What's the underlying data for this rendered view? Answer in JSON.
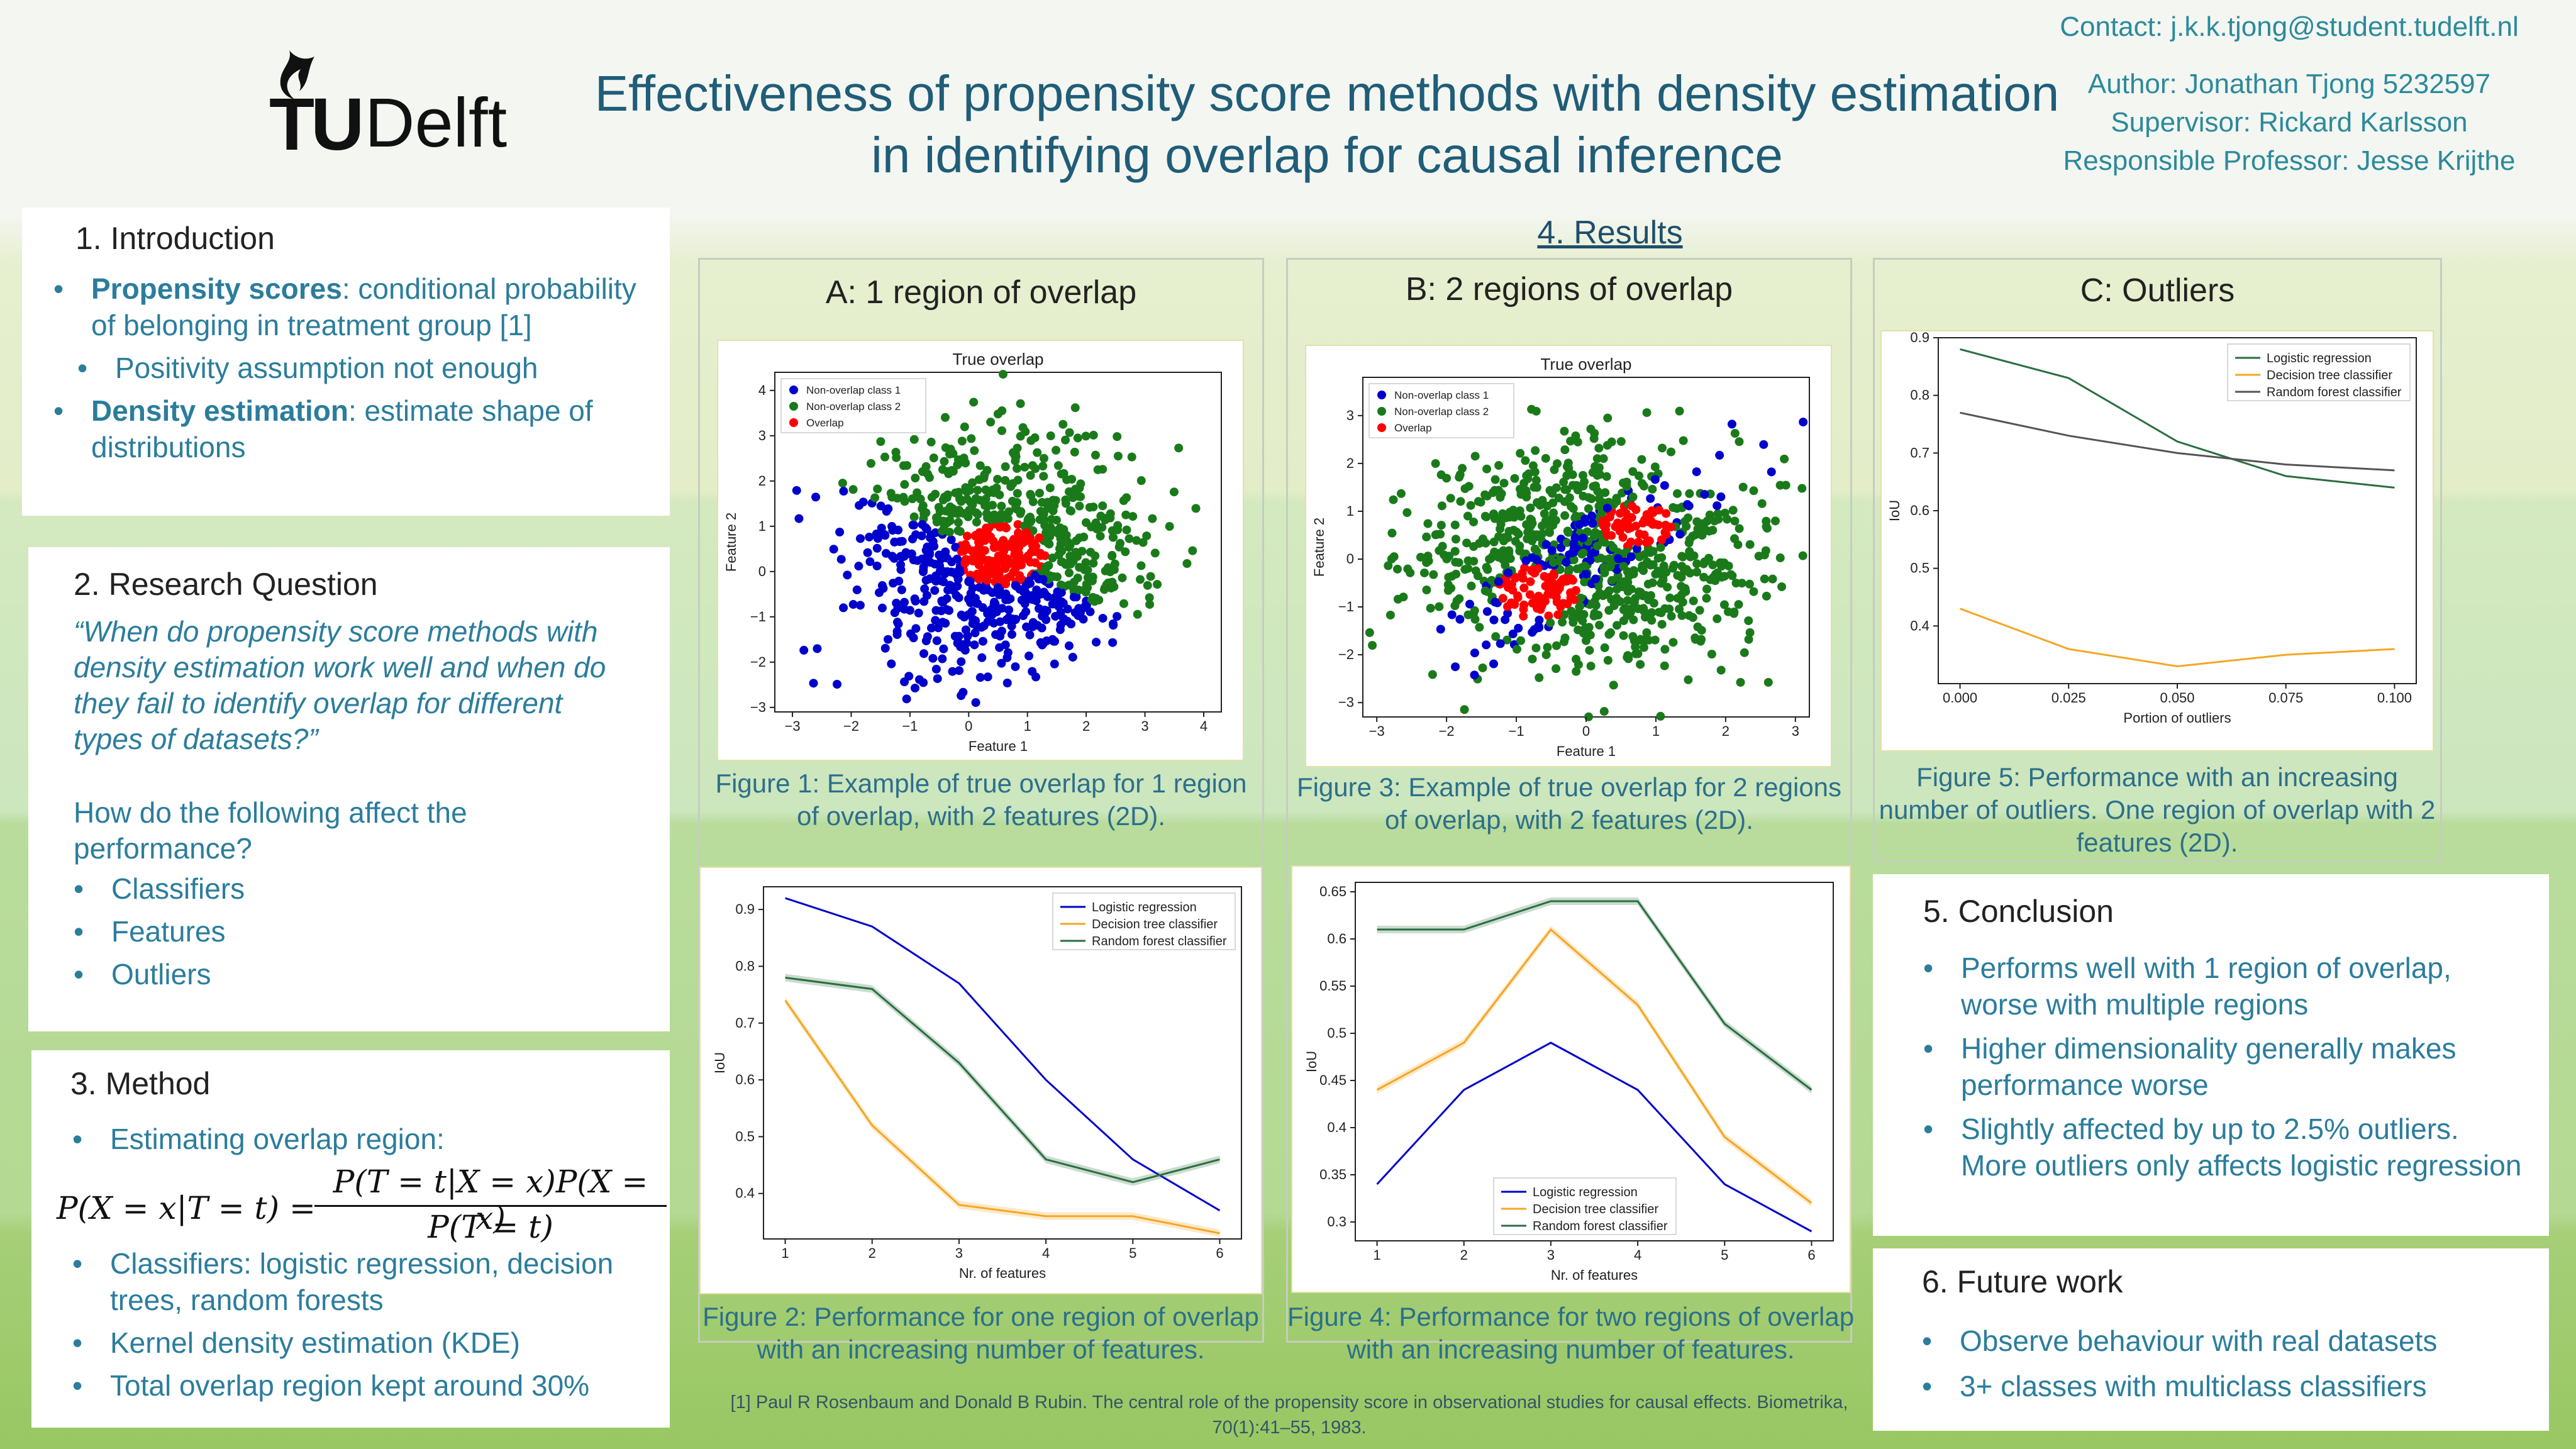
{
  "header": {
    "logo_tu": "TU",
    "logo_delft": "Delft",
    "title_line1": "Effectiveness of propensity score methods with density estimation",
    "title_line2": "in identifying overlap for causal inference",
    "contact": "Contact: j.k.k.tjong@student.tudelft.nl",
    "author": "Author: Jonathan Tjong 5232597",
    "supervisor": "Supervisor: Rickard Karlsson",
    "professor": "Responsible Professor: Jesse Krijthe"
  },
  "intro": {
    "heading": "1. Introduction",
    "b1_bold": "Propensity scores",
    "b1_rest": ": conditional probability of belonging in treatment group [1]",
    "b2": "Positivity assumption not enough",
    "b3_bold": "Density estimation",
    "b3_rest": ": estimate shape of distributions"
  },
  "rq": {
    "heading": "2. Research Question",
    "quote": "“When do propensity score methods with density estimation work well and when do they fail to identify overlap for different types of datasets?”",
    "question": "How do the following affect the performance?",
    "items": [
      "Classifiers",
      "Features",
      "Outliers"
    ]
  },
  "method": {
    "heading": "3. Method",
    "b1": "Estimating overlap region:",
    "b2": "Classifiers: logistic regression, decision trees, random forests",
    "b3": "Kernel density estimation (KDE)",
    "b4": "Total overlap region kept around 30%"
  },
  "formula": {
    "lhs": "P(X = x|T = t) =",
    "num": "P(T = t|X = x)P(X = x)",
    "den": "P(T = t)"
  },
  "results": {
    "heading": "4. Results",
    "colA": "A: 1 region of overlap",
    "colB": "B: 2 regions of overlap",
    "colC": "C: Outliers",
    "fig1": "Figure 1: Example of true overlap for 1 region of overlap, with 2 features (2D).",
    "fig2": "Figure 2: Performance for one region of overlap with an increasing number of features.",
    "fig3": "Figure 3: Example of true overlap for 2 regions of overlap, with 2 features (2D).",
    "fig4": "Figure 4: Performance for two regions of overlap with an increasing number of features.",
    "fig5": "Figure 5: Performance with an increasing number of outliers. One region of overlap with 2 features (2D)."
  },
  "conclusion": {
    "heading": "5. Conclusion",
    "items": [
      "Performs well with 1 region of overlap, worse with multiple regions",
      "Higher dimensionality generally makes performance worse",
      "Slightly affected by up to 2.5% outliers. More outliers only affects logistic regression"
    ]
  },
  "future": {
    "heading": "6. Future work",
    "items": [
      "Observe behaviour with real datasets",
      "3+ classes with multiclass classifiers"
    ]
  },
  "reference": "[1] Paul R Rosenbaum and Donald B Rubin. The central role of the propensity score in observational studies for causal effects. Biometrika, 70(1):41–55, 1983.",
  "colors": {
    "blue": "#0000cc",
    "green": "#1a7a1a",
    "red": "#ff0000",
    "orange": "#f5a623",
    "dark_green": "#2a6e3f",
    "grey": "#555555"
  },
  "chart_data": [
    {
      "id": "fig1",
      "type": "scatter",
      "title": "True overlap",
      "xlabel": "Feature 1",
      "ylabel": "Feature 2",
      "xlim": [
        -3.3,
        4.3
      ],
      "ylim": [
        -3.1,
        4.4
      ],
      "xticks": [
        -3,
        -2,
        -1,
        0,
        1,
        2,
        3,
        4
      ],
      "yticks": [
        -3,
        -2,
        -1,
        0,
        1,
        2,
        3,
        4
      ],
      "legend": [
        "Non-overlap class 1",
        "Non-overlap class 2",
        "Overlap"
      ],
      "legend_position": "top-left"
    },
    {
      "id": "fig3",
      "type": "scatter",
      "title": "True overlap",
      "xlabel": "Feature 1",
      "ylabel": "Feature 2",
      "xlim": [
        -3.2,
        3.2
      ],
      "ylim": [
        -3.3,
        3.8
      ],
      "xticks": [
        -3,
        -2,
        -1,
        0,
        1,
        2,
        3
      ],
      "yticks": [
        -3,
        -2,
        -1,
        0,
        1,
        2,
        3
      ],
      "legend": [
        "Non-overlap class 1",
        "Non-overlap class 2",
        "Overlap"
      ],
      "legend_position": "top-left"
    },
    {
      "id": "fig2",
      "type": "line",
      "xlabel": "Nr. of features",
      "ylabel": "IoU",
      "x": [
        1,
        2,
        3,
        4,
        5,
        6
      ],
      "xlim": [
        0.75,
        6.25
      ],
      "ylim": [
        0.32,
        0.94
      ],
      "yticks": [
        0.4,
        0.5,
        0.6,
        0.7,
        0.8,
        0.9
      ],
      "legend_position": "top-right",
      "series": [
        {
          "name": "Logistic regression",
          "color": "#0000cc",
          "values": [
            0.92,
            0.87,
            0.77,
            0.6,
            0.46,
            0.37
          ]
        },
        {
          "name": "Decision tree classifier",
          "color": "#f5a623",
          "values": [
            0.74,
            0.52,
            0.38,
            0.36,
            0.36,
            0.33
          ]
        },
        {
          "name": "Random forest classifier",
          "color": "#2a6e3f",
          "values": [
            0.78,
            0.76,
            0.63,
            0.46,
            0.42,
            0.46
          ]
        }
      ]
    },
    {
      "id": "fig4",
      "type": "line",
      "xlabel": "Nr. of features",
      "ylabel": "IoU",
      "x": [
        1,
        2,
        3,
        4,
        5,
        6
      ],
      "xlim": [
        0.75,
        6.25
      ],
      "ylim": [
        0.28,
        0.66
      ],
      "yticks": [
        0.3,
        0.35,
        0.4,
        0.45,
        0.5,
        0.55,
        0.6,
        0.65
      ],
      "legend_position": "bottom-center",
      "series": [
        {
          "name": "Logistic regression",
          "color": "#0000cc",
          "values": [
            0.34,
            0.44,
            0.49,
            0.44,
            0.34,
            0.29
          ]
        },
        {
          "name": "Decision tree classifier",
          "color": "#f5a623",
          "values": [
            0.44,
            0.49,
            0.61,
            0.53,
            0.39,
            0.32
          ]
        },
        {
          "name": "Random forest classifier",
          "color": "#2a6e3f",
          "values": [
            0.61,
            0.61,
            0.64,
            0.64,
            0.51,
            0.44
          ]
        }
      ]
    },
    {
      "id": "fig5",
      "type": "line",
      "xlabel": "Portion of outliers",
      "ylabel": "IoU",
      "x": [
        0.0,
        0.025,
        0.05,
        0.075,
        0.1
      ],
      "xlim": [
        -0.005,
        0.105
      ],
      "ylim": [
        0.3,
        0.9
      ],
      "yticks": [
        0.4,
        0.5,
        0.6,
        0.7,
        0.8,
        0.9
      ],
      "xticks": [
        "0.000",
        "0.025",
        "0.050",
        "0.075",
        "0.100"
      ],
      "legend_position": "top-right",
      "series": [
        {
          "name": "Logistic regression",
          "color": "#2a6e3f",
          "values": [
            0.88,
            0.83,
            0.72,
            0.66,
            0.64
          ]
        },
        {
          "name": "Decision tree classifier",
          "color": "#f5a623",
          "values": [
            0.43,
            0.36,
            0.33,
            0.35,
            0.36
          ]
        },
        {
          "name": "Random forest classifier",
          "color": "#555555",
          "values": [
            0.77,
            0.73,
            0.7,
            0.68,
            0.67
          ]
        }
      ]
    }
  ]
}
